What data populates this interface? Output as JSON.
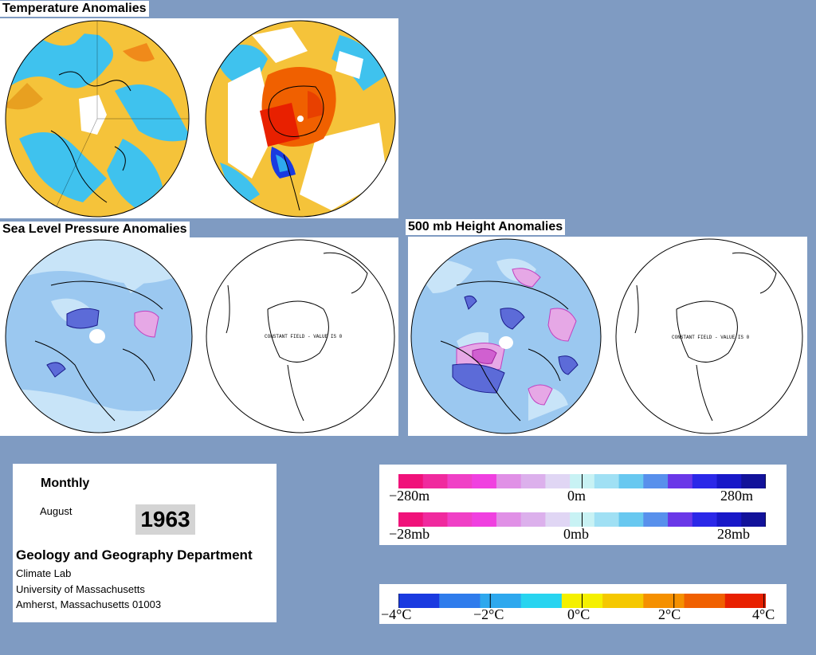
{
  "titles": {
    "temperature": "Temperature Anomalies",
    "slp": "Sea Level Pressure Anomalies",
    "height500": "500 mb Height Anomalies"
  },
  "constant_field_label": "CONSTANT FIELD - VALUE IS 0",
  "info": {
    "frequency": "Monthly",
    "month": "August",
    "year": "1963",
    "department": "Geology and Geography Department",
    "lab": "Climate Lab",
    "university": "University of Massachusetts",
    "address": "Amherst, Massachusetts 01003"
  },
  "legends": {
    "height": {
      "min": "−280m",
      "mid": "0m",
      "max": "280m"
    },
    "pressure": {
      "min": "−28mb",
      "mid": "0mb",
      "max": "28mb"
    },
    "temperature": {
      "t1": "−4°C",
      "t2": "−2°C",
      "t3": "0°C",
      "t4": "2°C",
      "t5": "4°C"
    }
  },
  "colors": {
    "background": "#7f9bc2",
    "temp_warm": "#f5c33a",
    "temp_cool": "#3fc2ee",
    "temp_hot": "#e8200c",
    "anom_light_blue": "#c8e4f8",
    "anom_blue": "#9bc8f0",
    "anom_dark": "#5c6bd8",
    "anom_pink": "#e6a8e6",
    "anom_magenta": "#d060d0"
  },
  "scales": {
    "anomaly": [
      "#f0127a",
      "#f02a9e",
      "#f040c6",
      "#f040e0",
      "#e090e6",
      "#dcb0ec",
      "#e0d6f4",
      "#c8f2f4",
      "#a0e0f4",
      "#68c8f0",
      "#5890ec",
      "#6a38e8",
      "#2b28e8",
      "#1818c8",
      "#12129a"
    ],
    "temperature": [
      "#1a3ae0",
      "#2f7cec",
      "#2ea8ee",
      "#28d4f0",
      "#f5f000",
      "#f5c800",
      "#f59000",
      "#f06000",
      "#e82000"
    ]
  }
}
